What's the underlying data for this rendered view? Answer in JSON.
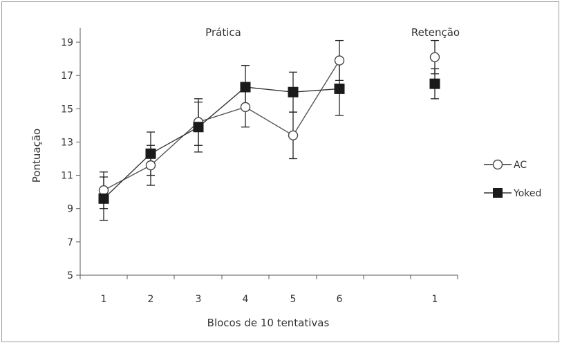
{
  "chart_data": {
    "type": "line",
    "ylabel": "Pontuação",
    "xlabel": "Blocos de 10 tentativas",
    "ylim": [
      5,
      19
    ],
    "yticks": [
      5,
      7,
      9,
      11,
      13,
      15,
      17,
      19
    ],
    "grid": false,
    "legend_position": "right",
    "panels": [
      {
        "label": "Prática",
        "categories": [
          "1",
          "2",
          "3",
          "4",
          "5",
          "6"
        ]
      },
      {
        "label": "Retenção",
        "categories": [
          "1"
        ]
      }
    ],
    "series": [
      {
        "name": "AC",
        "marker": "open-circle",
        "color": "#333333",
        "practice": [
          10.1,
          11.6,
          14.2,
          15.1,
          13.4,
          17.9
        ],
        "practice_err": [
          1.1,
          1.2,
          1.4,
          1.2,
          1.4,
          1.2
        ],
        "retention": [
          18.1
        ],
        "retention_err": [
          1.0
        ]
      },
      {
        "name": "Yoked",
        "marker": "filled-square",
        "color": "#1a1a1a",
        "practice": [
          9.6,
          12.3,
          13.9,
          16.3,
          16.0,
          16.2
        ],
        "practice_err": [
          1.3,
          1.3,
          1.5,
          1.3,
          1.2,
          1.6
        ],
        "retention": [
          16.5
        ],
        "retention_err": [
          0.9
        ]
      }
    ]
  }
}
